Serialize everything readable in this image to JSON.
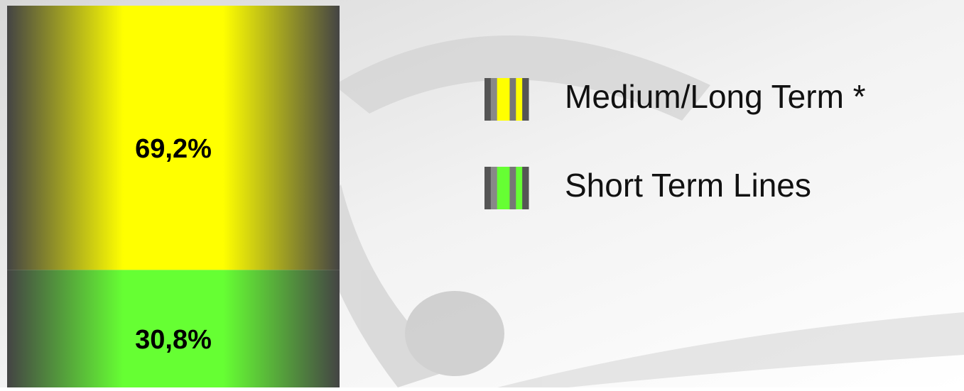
{
  "chart_data": {
    "type": "bar",
    "stacked": true,
    "categories": [
      null
    ],
    "ylim": [
      0,
      100
    ],
    "series": [
      {
        "name": "Medium/Long Term *",
        "color": "#ffff00",
        "values": [
          69.2
        ],
        "value_labels": [
          "69,2%"
        ]
      },
      {
        "name": "Short Term Lines",
        "color": "#66ff33",
        "values": [
          30.8
        ],
        "value_labels": [
          "30,8%"
        ]
      }
    ]
  }
}
